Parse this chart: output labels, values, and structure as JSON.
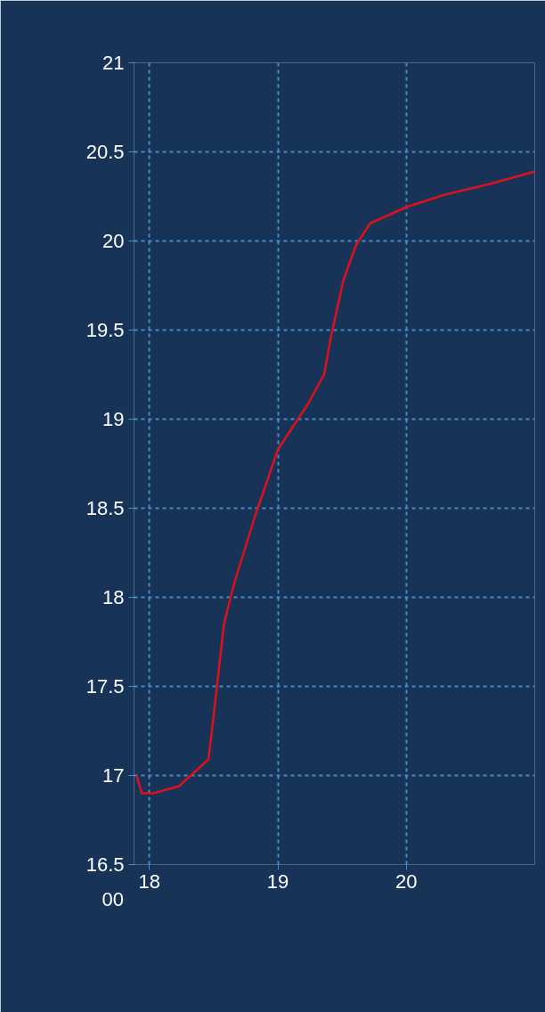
{
  "chart_data": {
    "type": "line",
    "x": [
      17.9,
      17.94,
      18.03,
      18.23,
      18.46,
      18.51,
      18.58,
      18.66,
      18.82,
      19.0,
      19.23,
      19.36,
      19.41,
      19.51,
      19.61,
      19.72,
      20.0,
      20.3,
      20.65,
      21.0
    ],
    "series": [
      {
        "color": "#e0101a",
        "values": [
          17.0,
          16.9,
          16.9,
          16.94,
          17.09,
          17.4,
          17.85,
          18.08,
          18.45,
          18.83,
          19.08,
          19.25,
          19.45,
          19.78,
          19.98,
          20.1,
          20.19,
          20.26,
          20.32,
          20.39
        ]
      }
    ],
    "xlim": [
      17.88,
      21
    ],
    "ylim": [
      16.5,
      21
    ],
    "xticks": [
      18,
      19,
      20
    ],
    "yticks": [
      16.5,
      17,
      17.5,
      18,
      18.5,
      19,
      19.5,
      20,
      20.5,
      21
    ],
    "grid": true,
    "line_style": "solid",
    "marker": "none",
    "annotations": [
      "00"
    ]
  }
}
